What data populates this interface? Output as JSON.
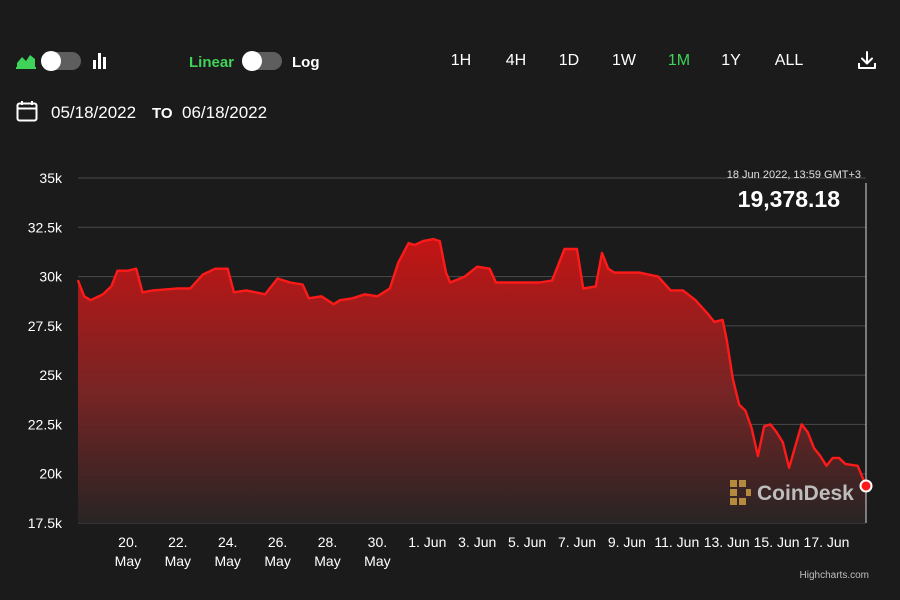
{
  "toolbar": {
    "chart_type_toggle": {
      "left_icon": "area-chart-icon",
      "right_icon": "bar-chart-icon"
    },
    "scale_toggle": {
      "left_label": "Linear",
      "right_label": "Log",
      "selected": "Linear"
    },
    "ranges": [
      "1H",
      "4H",
      "1D",
      "1W",
      "1M",
      "1Y",
      "ALL"
    ],
    "active_range": "1M",
    "download_icon": "download-icon"
  },
  "date_range": {
    "icon": "calendar-icon",
    "from": "05/18/2022",
    "to_word": "TO",
    "to": "06/18/2022"
  },
  "colors": {
    "accent_green": "#3fd35a",
    "line_red": "#ff1a1a",
    "background": "#1b1b1b"
  },
  "watermark": "CoinDesk",
  "credit": "Highcharts.com",
  "chart_data": {
    "type": "area",
    "title": "",
    "xlabel": "",
    "ylabel": "",
    "scale": "linear",
    "ylim": [
      17500,
      35000
    ],
    "yticks": [
      17500,
      20000,
      22500,
      25000,
      27500,
      30000,
      32500,
      35000
    ],
    "ytick_labels": [
      "17.5k",
      "20k",
      "22.5k",
      "25k",
      "27.5k",
      "30k",
      "32.5k",
      "35k"
    ],
    "xlim": [
      "2022-05-18",
      "2022-06-18 13:59"
    ],
    "xticks": [
      {
        "date": "2022-05-20",
        "label": [
          "20.",
          "May"
        ]
      },
      {
        "date": "2022-05-22",
        "label": [
          "22.",
          "May"
        ]
      },
      {
        "date": "2022-05-24",
        "label": [
          "24.",
          "May"
        ]
      },
      {
        "date": "2022-05-26",
        "label": [
          "26.",
          "May"
        ]
      },
      {
        "date": "2022-05-28",
        "label": [
          "28.",
          "May"
        ]
      },
      {
        "date": "2022-05-30",
        "label": [
          "30.",
          "May"
        ]
      },
      {
        "date": "2022-06-01",
        "label": [
          "1. Jun"
        ]
      },
      {
        "date": "2022-06-03",
        "label": [
          "3. Jun"
        ]
      },
      {
        "date": "2022-06-05",
        "label": [
          "5. Jun"
        ]
      },
      {
        "date": "2022-06-07",
        "label": [
          "7. Jun"
        ]
      },
      {
        "date": "2022-06-09",
        "label": [
          "9. Jun"
        ]
      },
      {
        "date": "2022-06-11",
        "label": [
          "11. Jun"
        ]
      },
      {
        "date": "2022-06-13",
        "label": [
          "13. Jun"
        ]
      },
      {
        "date": "2022-06-15",
        "label": [
          "15. Jun"
        ]
      },
      {
        "date": "2022-06-17",
        "label": [
          "17. Jun"
        ]
      }
    ],
    "grid": true,
    "series": [
      {
        "points": [
          [
            "2022-05-18 00:00",
            29800
          ],
          [
            "2022-05-18 06:00",
            29000
          ],
          [
            "2022-05-18 12:00",
            28800
          ],
          [
            "2022-05-19 00:00",
            29100
          ],
          [
            "2022-05-19 08:00",
            29500
          ],
          [
            "2022-05-19 14:00",
            30300
          ],
          [
            "2022-05-20 00:00",
            30300
          ],
          [
            "2022-05-20 08:00",
            30400
          ],
          [
            "2022-05-20 14:00",
            29200
          ],
          [
            "2022-05-21 00:00",
            29300
          ],
          [
            "2022-05-22 00:00",
            29400
          ],
          [
            "2022-05-22 12:00",
            29400
          ],
          [
            "2022-05-23 00:00",
            30100
          ],
          [
            "2022-05-23 12:00",
            30400
          ],
          [
            "2022-05-24 00:00",
            30400
          ],
          [
            "2022-05-24 06:00",
            29200
          ],
          [
            "2022-05-24 18:00",
            29300
          ],
          [
            "2022-05-25 12:00",
            29100
          ],
          [
            "2022-05-26 00:00",
            29900
          ],
          [
            "2022-05-26 12:00",
            29700
          ],
          [
            "2022-05-27 00:00",
            29600
          ],
          [
            "2022-05-27 06:00",
            28900
          ],
          [
            "2022-05-27 18:00",
            29000
          ],
          [
            "2022-05-28 06:00",
            28600
          ],
          [
            "2022-05-28 12:00",
            28800
          ],
          [
            "2022-05-29 00:00",
            28900
          ],
          [
            "2022-05-29 12:00",
            29100
          ],
          [
            "2022-05-30 00:00",
            29000
          ],
          [
            "2022-05-30 12:00",
            29400
          ],
          [
            "2022-05-30 20:00",
            30700
          ],
          [
            "2022-05-31 06:00",
            31700
          ],
          [
            "2022-05-31 12:00",
            31600
          ],
          [
            "2022-05-31 20:00",
            31800
          ],
          [
            "2022-06-01 06:00",
            31900
          ],
          [
            "2022-06-01 12:00",
            31800
          ],
          [
            "2022-06-01 18:00",
            30200
          ],
          [
            "2022-06-01 22:00",
            29700
          ],
          [
            "2022-06-02 12:00",
            30000
          ],
          [
            "2022-06-03 00:00",
            30500
          ],
          [
            "2022-06-03 12:00",
            30400
          ],
          [
            "2022-06-03 18:00",
            29700
          ],
          [
            "2022-06-04 12:00",
            29700
          ],
          [
            "2022-06-05 12:00",
            29700
          ],
          [
            "2022-06-06 00:00",
            29800
          ],
          [
            "2022-06-06 12:00",
            31400
          ],
          [
            "2022-06-07 00:00",
            31400
          ],
          [
            "2022-06-07 06:00",
            29400
          ],
          [
            "2022-06-07 18:00",
            29500
          ],
          [
            "2022-06-08 00:00",
            31200
          ],
          [
            "2022-06-08 06:00",
            30400
          ],
          [
            "2022-06-08 12:00",
            30200
          ],
          [
            "2022-06-09 12:00",
            30200
          ],
          [
            "2022-06-10 06:00",
            30000
          ],
          [
            "2022-06-10 18:00",
            29300
          ],
          [
            "2022-06-11 06:00",
            29300
          ],
          [
            "2022-06-11 18:00",
            28800
          ],
          [
            "2022-06-12 06:00",
            28100
          ],
          [
            "2022-06-12 12:00",
            27700
          ],
          [
            "2022-06-12 20:00",
            27800
          ],
          [
            "2022-06-13 00:00",
            26800
          ],
          [
            "2022-06-13 06:00",
            24800
          ],
          [
            "2022-06-13 12:00",
            23500
          ],
          [
            "2022-06-13 18:00",
            23200
          ],
          [
            "2022-06-14 00:00",
            22300
          ],
          [
            "2022-06-14 06:00",
            20900
          ],
          [
            "2022-06-14 12:00",
            22400
          ],
          [
            "2022-06-14 18:00",
            22500
          ],
          [
            "2022-06-15 00:00",
            22100
          ],
          [
            "2022-06-15 06:00",
            21600
          ],
          [
            "2022-06-15 12:00",
            20300
          ],
          [
            "2022-06-15 18:00",
            21400
          ],
          [
            "2022-06-16 00:00",
            22500
          ],
          [
            "2022-06-16 06:00",
            22100
          ],
          [
            "2022-06-16 12:00",
            21300
          ],
          [
            "2022-06-16 18:00",
            20900
          ],
          [
            "2022-06-17 00:00",
            20400
          ],
          [
            "2022-06-17 06:00",
            20800
          ],
          [
            "2022-06-17 12:00",
            20800
          ],
          [
            "2022-06-17 18:00",
            20500
          ],
          [
            "2022-06-18 06:00",
            20400
          ],
          [
            "2022-06-18 13:59",
            19378.18
          ]
        ]
      }
    ],
    "tooltip": {
      "date_label": "18 Jun 2022, 13:59 GMT+3",
      "value_label": "19,378.18",
      "date": "2022-06-18 13:59",
      "value": 19378.18
    }
  }
}
